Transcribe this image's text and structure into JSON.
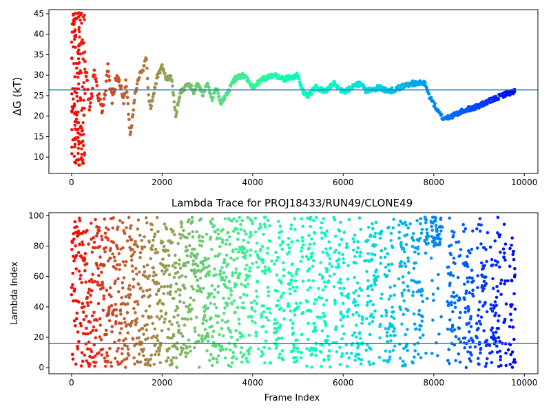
{
  "chart_data": [
    {
      "type": "scatter",
      "title": "",
      "xlabel": "",
      "ylabel": "ΔG (kT)",
      "xlim": [
        -500,
        10300
      ],
      "ylim": [
        6,
        46
      ],
      "xticks": [
        0,
        2000,
        4000,
        6000,
        8000,
        10000
      ],
      "yticks": [
        10,
        15,
        20,
        25,
        30,
        35,
        40,
        45
      ],
      "colormap": "rainbow",
      "hline": {
        "y": 26.4,
        "color": "#1f77b4"
      },
      "trace_keypoints": [
        [
          0,
          10
        ],
        [
          30,
          45
        ],
        [
          60,
          30
        ],
        [
          100,
          40
        ],
        [
          150,
          28
        ],
        [
          200,
          36
        ],
        [
          250,
          8
        ],
        [
          300,
          33
        ],
        [
          400,
          22
        ],
        [
          500,
          30
        ],
        [
          600,
          25
        ],
        [
          700,
          21
        ],
        [
          800,
          32
        ],
        [
          900,
          24
        ],
        [
          1000,
          30
        ],
        [
          1100,
          27
        ],
        [
          1150,
          23
        ],
        [
          1200,
          29
        ],
        [
          1300,
          15
        ],
        [
          1400,
          25
        ],
        [
          1500,
          30
        ],
        [
          1600,
          32
        ],
        [
          1650,
          35
        ],
        [
          1700,
          25
        ],
        [
          1750,
          22
        ],
        [
          1900,
          30
        ],
        [
          2000,
          32
        ],
        [
          2100,
          29
        ],
        [
          2200,
          30
        ],
        [
          2300,
          20
        ],
        [
          2400,
          26
        ],
        [
          2600,
          28
        ],
        [
          2700,
          26
        ],
        [
          2800,
          28
        ],
        [
          2900,
          25
        ],
        [
          3000,
          28
        ],
        [
          3100,
          24
        ],
        [
          3200,
          27
        ],
        [
          3300,
          23
        ],
        [
          3400,
          25
        ],
        [
          3600,
          29
        ],
        [
          3800,
          30
        ],
        [
          4000,
          27
        ],
        [
          4200,
          29
        ],
        [
          4500,
          30
        ],
        [
          4700,
          29
        ],
        [
          5000,
          30
        ],
        [
          5100,
          26
        ],
        [
          5200,
          25
        ],
        [
          5400,
          27
        ],
        [
          5600,
          26
        ],
        [
          5800,
          28
        ],
        [
          6000,
          26
        ],
        [
          6200,
          27
        ],
        [
          6400,
          28
        ],
        [
          6500,
          26
        ],
        [
          6800,
          27
        ],
        [
          7000,
          26
        ],
        [
          7500,
          28
        ],
        [
          7800,
          28
        ],
        [
          7900,
          25
        ],
        [
          8100,
          21
        ],
        [
          8200,
          19.5
        ],
        [
          8400,
          20
        ],
        [
          8700,
          21.5
        ],
        [
          9000,
          22.5
        ],
        [
          9300,
          24
        ],
        [
          9600,
          25.5
        ],
        [
          9800,
          26
        ]
      ]
    },
    {
      "type": "scatter",
      "title": "Lambda Trace for PROJ18433/RUN49/CLONE49",
      "xlabel": "Frame Index",
      "ylabel": "Lambda Index",
      "xlim": [
        -500,
        10300
      ],
      "ylim": [
        -4,
        102
      ],
      "xticks": [
        0,
        2000,
        4000,
        6000,
        8000,
        10000
      ],
      "yticks": [
        0,
        20,
        40,
        60,
        80,
        100
      ],
      "colormap": "rainbow",
      "hline": {
        "y": 16,
        "color": "#1f77b4"
      },
      "x_range": [
        0,
        9800
      ],
      "n_points": 9800,
      "lambda_range": [
        0,
        99
      ],
      "high_lambda_window": {
        "x": [
          7800,
          8200
        ],
        "y": [
          80,
          99
        ]
      }
    }
  ]
}
